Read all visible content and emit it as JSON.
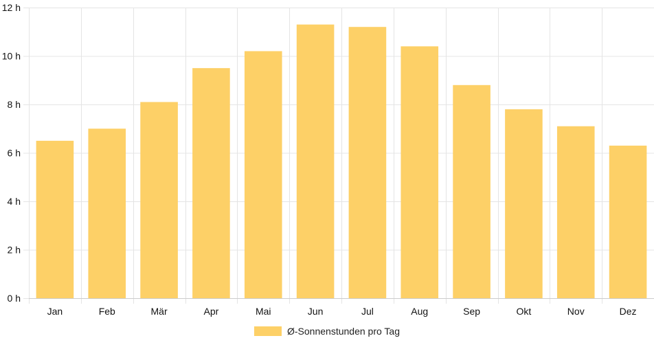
{
  "chart_data": {
    "type": "bar",
    "categories": [
      "Jan",
      "Feb",
      "Mär",
      "Apr",
      "Mai",
      "Jun",
      "Jul",
      "Aug",
      "Sep",
      "Okt",
      "Nov",
      "Dez"
    ],
    "series": [
      {
        "name": "Ø-Sonnenstunden pro Tag",
        "values": [
          6.5,
          7.0,
          8.1,
          9.5,
          10.2,
          11.3,
          11.2,
          10.4,
          8.8,
          7.8,
          7.1,
          6.3
        ]
      }
    ],
    "ylim": [
      0,
      12
    ],
    "yticks": [
      0,
      2,
      4,
      6,
      8,
      10,
      12
    ],
    "ytick_labels": [
      "0 h",
      "2 h",
      "4 h",
      "6 h",
      "8 h",
      "10 h",
      "12 h"
    ],
    "grid": true,
    "legend_position": "bottom"
  },
  "colors": {
    "bar": "#fdd067",
    "grid": "#e4e4e4",
    "axis": "#cccccc"
  }
}
